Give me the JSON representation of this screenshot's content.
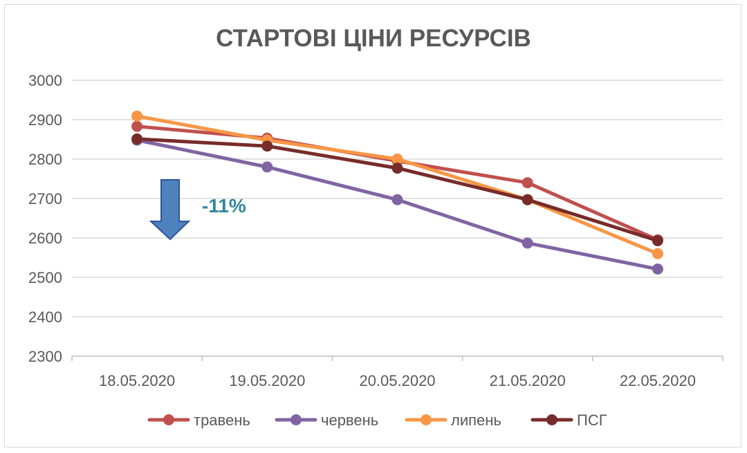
{
  "chart_data": {
    "type": "line",
    "title": "СТАРТОВІ ЦІНИ РЕСУРСІВ",
    "xlabel": "",
    "ylabel": "",
    "categories": [
      "18.05.2020",
      "19.05.2020",
      "20.05.2020",
      "21.05.2020",
      "22.05.2020"
    ],
    "ylim": [
      2300,
      3000
    ],
    "yticks": [
      2300,
      2400,
      2500,
      2600,
      2700,
      2800,
      2900,
      3000
    ],
    "grid": "horizontal",
    "legend_position": "bottom",
    "series": [
      {
        "name": "травень",
        "color": "#c0504d",
        "values": [
          2883,
          2853,
          2795,
          2740,
          2595
        ]
      },
      {
        "name": "червень",
        "color": "#8064a2",
        "values": [
          2848,
          2780,
          2697,
          2587,
          2521
        ]
      },
      {
        "name": "липень",
        "color": "#f79646",
        "values": [
          2909,
          2848,
          2800,
          2697,
          2560
        ]
      },
      {
        "name": "ПСГ",
        "color": "#772c2a",
        "values": [
          2851,
          2833,
          2777,
          2697,
          2593
        ]
      }
    ],
    "annotations": [
      {
        "text": "-11%",
        "icon": "down-arrow-icon",
        "color": "#4f81bd"
      }
    ]
  }
}
